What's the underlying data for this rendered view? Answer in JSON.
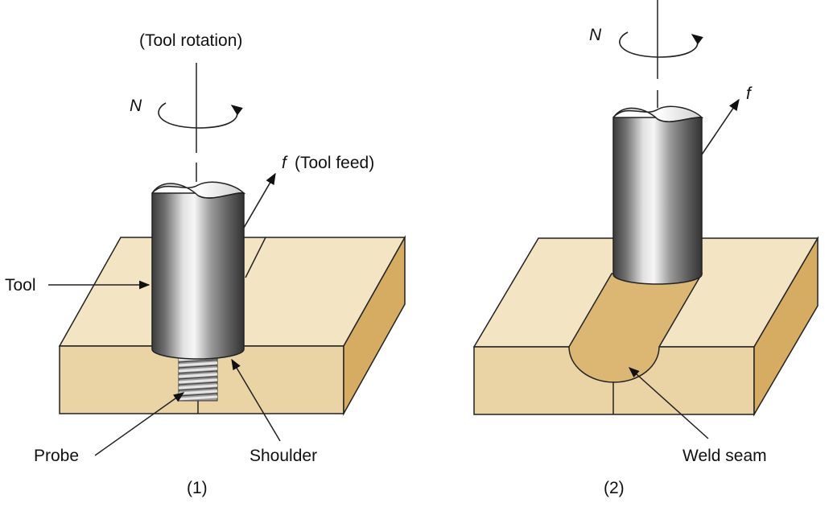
{
  "panel1": {
    "rotation_label": "(Tool rotation)",
    "rotation_symbol": "N",
    "feed_symbol": "f",
    "feed_label": "(Tool feed)",
    "tool_label": "Tool",
    "probe_label": "Probe",
    "shoulder_label": "Shoulder",
    "caption": "(1)"
  },
  "panel2": {
    "rotation_symbol": "N",
    "feed_symbol": "f",
    "weld_seam_label": "Weld seam",
    "caption": "(2)"
  },
  "colors": {
    "block_top": "#f3e4c4",
    "block_front": "#ead3a5",
    "block_side": "#d5ac61",
    "weld_seam": "#dcb774",
    "tool_metal": "#8a8a8a"
  }
}
